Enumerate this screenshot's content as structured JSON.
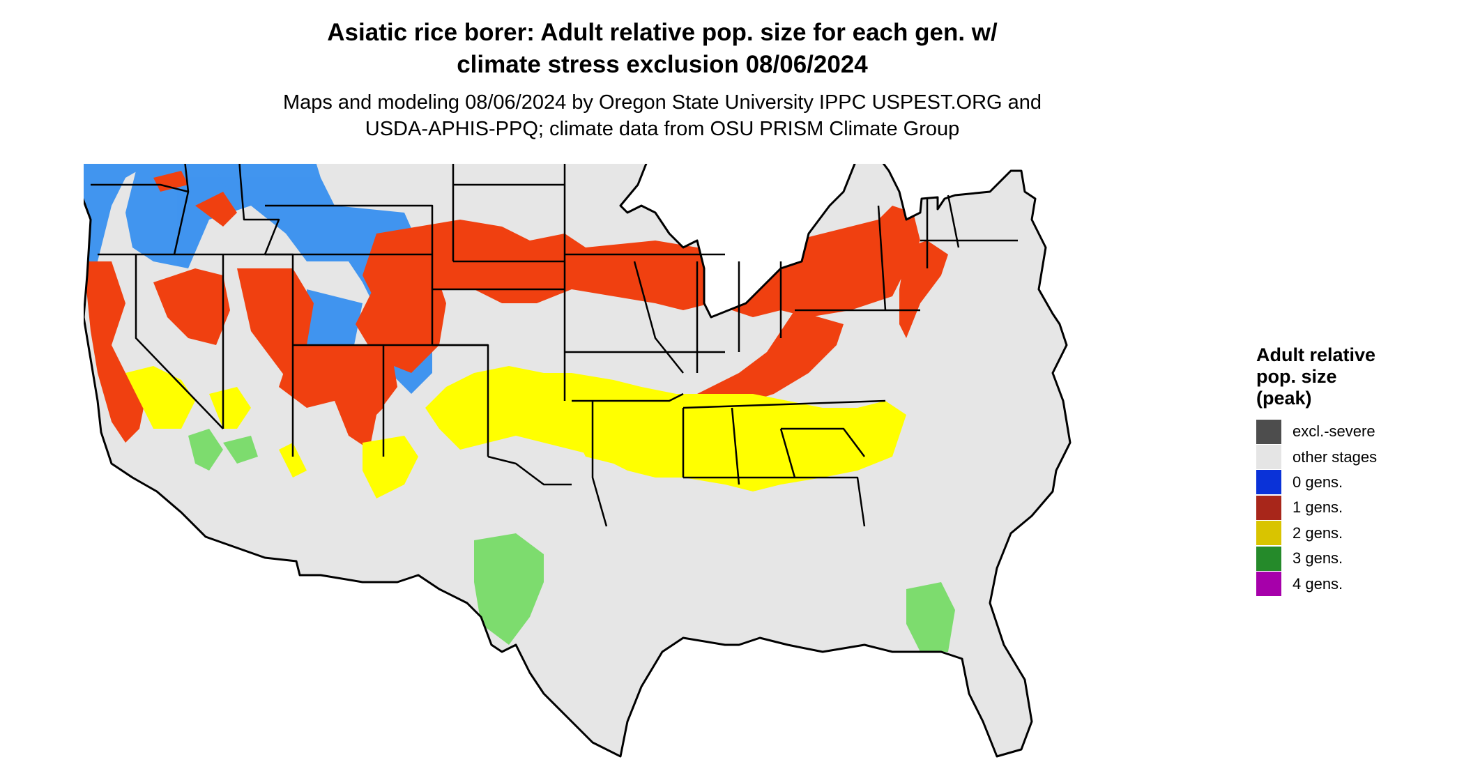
{
  "header": {
    "title_line1": "Asiatic rice borer: Adult relative pop. size for each gen. w/",
    "title_line2": "climate stress exclusion 08/06/2024",
    "subtitle_line1": "Maps and modeling 08/06/2024 by Oregon State University IPPC USPEST.ORG and",
    "subtitle_line2": "USDA-APHIS-PPQ; climate data from OSU PRISM Climate Group"
  },
  "legend": {
    "title_line1": "Adult relative",
    "title_line2": "pop. size",
    "title_line3": "(peak)",
    "items": [
      {
        "label": "excl.-severe",
        "color": "#4d4d4d"
      },
      {
        "label": "other stages",
        "color": "#e5e5e5"
      },
      {
        "label": "0 gens.",
        "color": "#0a32d8"
      },
      {
        "label": "1 gens.",
        "color": "#a8261a"
      },
      {
        "label": "2 gens.",
        "color": "#d9c400"
      },
      {
        "label": "3 gens.",
        "color": "#258a2a"
      },
      {
        "label": "4 gens.",
        "color": "#a600aa"
      }
    ]
  },
  "map_colors": {
    "land": "#e6e6e6",
    "zero_gens_fill": "#2f8cf0",
    "one_gen_fill": "#f04010",
    "two_gens_fill": "#ffff00",
    "three_gens_fill": "#7ddc6e",
    "four_gens_fill": "#e020e0",
    "borders": "#000000"
  }
}
